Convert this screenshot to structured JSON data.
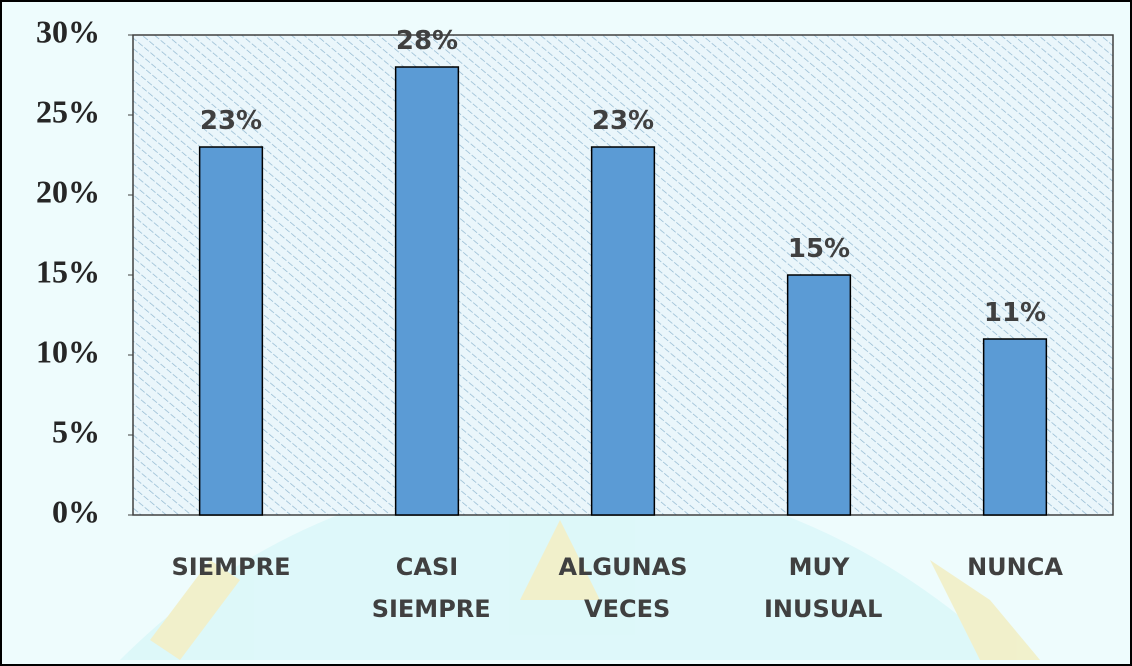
{
  "chart_data": {
    "type": "bar",
    "categories": [
      "SIEMPRE",
      "CASI SIEMPRE",
      "ALGUNAS VECES",
      "MUY INUSUAL",
      "NUNCA"
    ],
    "values": [
      23,
      28,
      23,
      15,
      11
    ],
    "value_labels": [
      "23%",
      "28%",
      "23%",
      "15%",
      "11%"
    ],
    "color": "#5b9bd5",
    "ylim": [
      0,
      30
    ],
    "yticks": [
      {
        "value": 0,
        "label": "0%"
      },
      {
        "value": 5,
        "label": "5%"
      },
      {
        "value": 10,
        "label": "10%"
      },
      {
        "value": 15,
        "label": "15%"
      },
      {
        "value": 20,
        "label": "20%"
      },
      {
        "value": 25,
        "label": "25%"
      },
      {
        "value": 30,
        "label": "30%"
      }
    ],
    "grid": false
  }
}
